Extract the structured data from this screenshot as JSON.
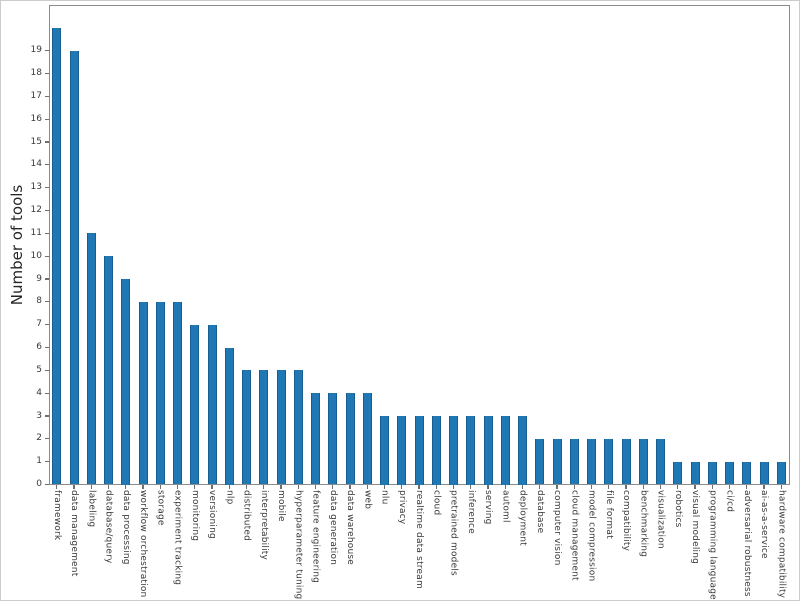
{
  "chart_data": {
    "type": "bar",
    "title": "",
    "xlabel": "",
    "ylabel": "Number of tools",
    "categories": [
      "framework",
      "data management",
      "labeling",
      "database/query",
      "data processing",
      "workflow orchestration",
      "storage",
      "experiment tracking",
      "monitoring",
      "versioning",
      "nlp",
      "distributed",
      "interpretability",
      "mobile",
      "hyperparameter tuning",
      "feature engineering",
      "data generation",
      "data warehouse",
      "web",
      "nlu",
      "privacy",
      "realtime data stream",
      "cloud",
      "pretrained models",
      "inference",
      "serving",
      "automl",
      "deployment",
      "database",
      "computer vision",
      "cloud management",
      "model compression",
      "file format",
      "compatibility",
      "benchmarking",
      "visualization",
      "robotics",
      "visual modeling",
      "programming language",
      "ci/cd",
      "adversarial robustness",
      "ai-as-a-service",
      "hardware compatibility"
    ],
    "values": [
      20,
      19,
      11,
      10,
      9,
      8,
      8,
      8,
      7,
      7,
      6,
      5,
      5,
      5,
      5,
      4,
      4,
      4,
      4,
      3,
      3,
      3,
      3,
      3,
      3,
      3,
      3,
      3,
      2,
      2,
      2,
      2,
      2,
      2,
      2,
      2,
      1,
      1,
      1,
      1,
      1,
      1,
      1
    ],
    "ylim": [
      0,
      21
    ],
    "yticks": [
      0,
      1,
      2,
      3,
      4,
      5,
      6,
      7,
      8,
      9,
      10,
      11,
      12,
      13,
      14,
      15,
      16,
      17,
      18,
      19
    ],
    "bar_color": "#1f77b4",
    "grid": false,
    "legend_position": "none",
    "x_tick_rotation": "vertical-top-to-bottom"
  }
}
